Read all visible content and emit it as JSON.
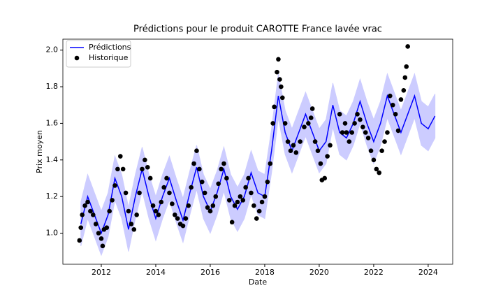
{
  "chart_data": {
    "type": "line",
    "title": "Prédictions pour le produit CAROTTE France lavée vrac",
    "xlabel": "Date",
    "ylabel": "Prix moyen",
    "xlim": [
      2010.59,
      2024.9
    ],
    "ylim": [
      0.83,
      2.06
    ],
    "xticks": [
      2012,
      2014,
      2016,
      2018,
      2020,
      2022,
      2024
    ],
    "yticks": [
      {
        "value": 1,
        "label": "1.0"
      },
      1.2,
      1.4,
      1.6,
      1.8,
      {
        "value": 2,
        "label": "2.0"
      }
    ],
    "legend": "upper left",
    "series": [
      {
        "name": "Prédictions",
        "type": "line",
        "color": "#0000ff",
        "band_color": "#ccccff",
        "x": [
          2011.25,
          2011.5,
          2011.75,
          2012,
          2012.25,
          2012.5,
          2012.75,
          2013,
          2013.25,
          2013.5,
          2013.75,
          2014,
          2014.25,
          2014.5,
          2014.75,
          2015,
          2015.25,
          2015.5,
          2015.75,
          2016,
          2016.25,
          2016.5,
          2016.75,
          2017,
          2017.25,
          2017.5,
          2017.75,
          2018,
          2018.25,
          2018.5,
          2018.75,
          2019,
          2019.25,
          2019.5,
          2019.75,
          2020,
          2020.25,
          2020.5,
          2020.75,
          2021,
          2021.25,
          2021.5,
          2021.75,
          2022,
          2022.25,
          2022.5,
          2022.75,
          2023,
          2023.25,
          2023.5,
          2023.75,
          2024,
          2024.25
        ],
        "values": [
          1.05,
          1.2,
          1.1,
          1.0,
          1.1,
          1.3,
          1.2,
          1.02,
          1.2,
          1.35,
          1.2,
          1.08,
          1.2,
          1.3,
          1.18,
          1.07,
          1.22,
          1.36,
          1.2,
          1.12,
          1.22,
          1.35,
          1.2,
          1.13,
          1.2,
          1.33,
          1.22,
          1.2,
          1.45,
          1.75,
          1.55,
          1.45,
          1.55,
          1.65,
          1.55,
          1.45,
          1.5,
          1.7,
          1.55,
          1.52,
          1.6,
          1.72,
          1.6,
          1.5,
          1.6,
          1.75,
          1.65,
          1.55,
          1.65,
          1.75,
          1.6,
          1.57,
          1.64
        ],
        "lower": [
          0.93,
          1.08,
          0.98,
          0.88,
          0.98,
          1.18,
          1.08,
          0.9,
          1.08,
          1.23,
          1.08,
          0.96,
          1.08,
          1.18,
          1.06,
          0.95,
          1.1,
          1.24,
          1.08,
          1.0,
          1.1,
          1.23,
          1.08,
          1.01,
          1.08,
          1.21,
          1.1,
          1.08,
          1.33,
          1.63,
          1.43,
          1.33,
          1.43,
          1.53,
          1.43,
          1.33,
          1.38,
          1.58,
          1.43,
          1.4,
          1.48,
          1.6,
          1.48,
          1.38,
          1.48,
          1.63,
          1.53,
          1.43,
          1.53,
          1.63,
          1.48,
          1.45,
          1.52
        ],
        "upper": [
          1.17,
          1.32,
          1.22,
          1.12,
          1.22,
          1.42,
          1.32,
          1.14,
          1.32,
          1.47,
          1.32,
          1.2,
          1.32,
          1.42,
          1.3,
          1.19,
          1.34,
          1.48,
          1.32,
          1.24,
          1.34,
          1.47,
          1.32,
          1.25,
          1.32,
          1.45,
          1.34,
          1.32,
          1.57,
          1.87,
          1.67,
          1.57,
          1.67,
          1.77,
          1.67,
          1.57,
          1.62,
          1.82,
          1.67,
          1.64,
          1.72,
          1.84,
          1.72,
          1.62,
          1.72,
          1.87,
          1.77,
          1.67,
          1.77,
          1.87,
          1.72,
          1.69,
          1.76
        ]
      },
      {
        "name": "Historique",
        "type": "scatter",
        "color": "#000000",
        "x": [
          2011.2,
          2011.25,
          2011.3,
          2011.4,
          2011.5,
          2011.6,
          2011.7,
          2011.8,
          2011.9,
          2012.0,
          2012.05,
          2012.1,
          2012.2,
          2012.3,
          2012.4,
          2012.5,
          2012.6,
          2012.7,
          2012.8,
          2012.9,
          2013.0,
          2013.1,
          2013.2,
          2013.3,
          2013.4,
          2013.5,
          2013.6,
          2013.7,
          2013.8,
          2013.9,
          2014.0,
          2014.1,
          2014.2,
          2014.3,
          2014.4,
          2014.5,
          2014.6,
          2014.7,
          2014.8,
          2014.9,
          2015.0,
          2015.1,
          2015.2,
          2015.3,
          2015.4,
          2015.5,
          2015.6,
          2015.7,
          2015.8,
          2015.9,
          2016.0,
          2016.1,
          2016.2,
          2016.3,
          2016.4,
          2016.5,
          2016.6,
          2016.7,
          2016.8,
          2016.9,
          2017.0,
          2017.1,
          2017.2,
          2017.3,
          2017.4,
          2017.5,
          2017.6,
          2017.7,
          2017.8,
          2017.9,
          2018.0,
          2018.1,
          2018.2,
          2018.3,
          2018.35,
          2018.45,
          2018.5,
          2018.55,
          2018.6,
          2018.65,
          2018.75,
          2018.85,
          2018.95,
          2019.05,
          2019.15,
          2019.3,
          2019.45,
          2019.6,
          2019.7,
          2019.75,
          2019.85,
          2019.95,
          2020.05,
          2020.1,
          2020.2,
          2020.3,
          2020.4,
          2020.75,
          2020.85,
          2020.95,
          2021.0,
          2021.1,
          2021.2,
          2021.3,
          2021.4,
          2021.5,
          2021.6,
          2021.7,
          2021.8,
          2021.9,
          2022.0,
          2022.1,
          2022.2,
          2022.3,
          2022.4,
          2022.5,
          2022.6,
          2022.7,
          2022.8,
          2022.9,
          2023.0,
          2023.1,
          2023.15,
          2023.2,
          2023.25
        ],
        "values": [
          0.96,
          1.03,
          1.1,
          1.15,
          1.17,
          1.12,
          1.1,
          1.05,
          1.0,
          0.97,
          0.93,
          1.02,
          1.03,
          1.12,
          1.18,
          1.26,
          1.35,
          1.42,
          1.35,
          1.22,
          1.12,
          1.05,
          1.02,
          1.1,
          1.22,
          1.35,
          1.4,
          1.36,
          1.3,
          1.15,
          1.12,
          1.1,
          1.17,
          1.25,
          1.3,
          1.22,
          1.16,
          1.1,
          1.08,
          1.05,
          1.04,
          1.08,
          1.15,
          1.25,
          1.38,
          1.45,
          1.35,
          1.28,
          1.22,
          1.14,
          1.12,
          1.15,
          1.2,
          1.27,
          1.35,
          1.38,
          1.3,
          1.18,
          1.06,
          1.15,
          1.17,
          1.2,
          1.18,
          1.25,
          1.3,
          1.22,
          1.15,
          1.08,
          1.12,
          1.17,
          1.2,
          1.28,
          1.38,
          1.6,
          1.69,
          1.88,
          1.95,
          1.84,
          1.8,
          1.74,
          1.6,
          1.5,
          1.45,
          1.48,
          1.44,
          1.5,
          1.58,
          1.6,
          1.63,
          1.68,
          1.5,
          1.45,
          1.38,
          1.29,
          1.3,
          1.42,
          1.48,
          1.65,
          1.55,
          1.6,
          1.55,
          1.5,
          1.55,
          1.6,
          1.65,
          1.62,
          1.58,
          1.55,
          1.52,
          1.45,
          1.4,
          1.35,
          1.33,
          1.45,
          1.5,
          1.55,
          1.75,
          1.7,
          1.65,
          1.56,
          1.73,
          1.78,
          1.85,
          1.91,
          2.02
        ]
      }
    ]
  }
}
